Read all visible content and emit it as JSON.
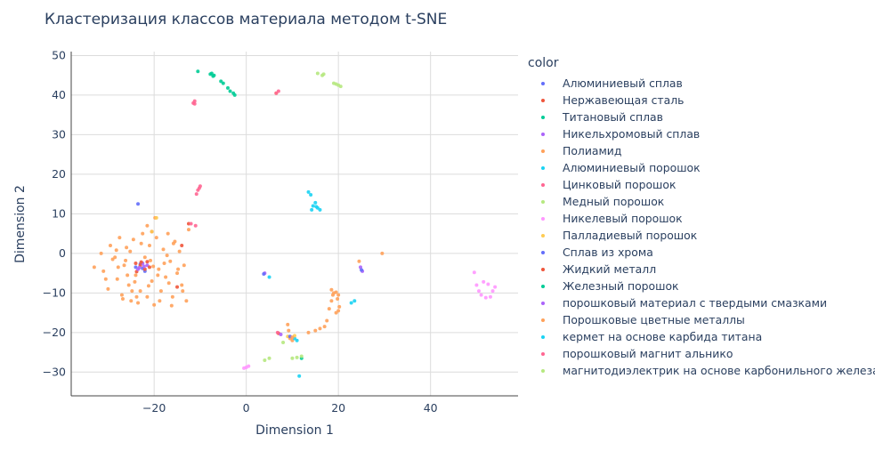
{
  "chart_data": {
    "type": "scatter",
    "title": "Кластеризация классов материала методом t-SNE",
    "xlabel": "Dimension 1",
    "ylabel": "Dimension 2",
    "xlim": [
      -38,
      59
    ],
    "ylim": [
      -36,
      51
    ],
    "x_ticks": [
      -20,
      0,
      20,
      40
    ],
    "y_ticks": [
      -30,
      -20,
      -10,
      0,
      10,
      20,
      30,
      40,
      50
    ],
    "grid": true,
    "legend_title": "color",
    "legend_position": "right",
    "series": [
      {
        "name": "Алюминиевый сплав",
        "color": "#636efa",
        "points": [
          [
            -23.5,
            12.5
          ],
          [
            -22.5,
            -3.8
          ],
          [
            -23,
            -2.7
          ],
          [
            -24,
            -3.5
          ],
          [
            -22,
            -4.5
          ]
        ]
      },
      {
        "name": "Нержавеющая сталь",
        "color": "#ef553b",
        "points": [
          [
            -23,
            -3
          ],
          [
            -22,
            -4
          ],
          [
            -24,
            -2.5
          ],
          [
            -20.5,
            5.5
          ],
          [
            -15,
            -8.5
          ],
          [
            -23.8,
            -4.6
          ],
          [
            -21.5,
            -2.1
          ],
          [
            -12.5,
            7.5
          ],
          [
            -14,
            2
          ]
        ]
      },
      {
        "name": "Титановый сплав",
        "color": "#00cc96",
        "points": [
          [
            -10.5,
            46
          ],
          [
            -7.5,
            45.5
          ],
          [
            -7,
            45
          ],
          [
            -5.5,
            43.5
          ],
          [
            -5,
            43
          ],
          [
            -4,
            41.8
          ],
          [
            -3.5,
            41
          ],
          [
            -2.8,
            40.5
          ],
          [
            -2.5,
            40
          ]
        ]
      },
      {
        "name": "Никельхромовый сплав",
        "color": "#ab63fa",
        "points": [
          [
            -22.5,
            -2.5
          ],
          [
            -23.5,
            -4
          ],
          [
            -21.5,
            -3
          ],
          [
            4,
            -5
          ],
          [
            24.8,
            -3.5
          ],
          [
            25.2,
            -4.5
          ]
        ]
      },
      {
        "name": "Полиамид",
        "color": "#ffa15a",
        "points": [
          [
            -33,
            -3.5
          ],
          [
            -31.5,
            0
          ],
          [
            -31,
            -4.5
          ],
          [
            -30,
            -9
          ],
          [
            -29.5,
            2
          ],
          [
            -28.5,
            -1
          ],
          [
            -28,
            -6.5
          ],
          [
            -27.5,
            4
          ],
          [
            -27,
            -10.5
          ],
          [
            -26.5,
            -3
          ],
          [
            -26,
            1.5
          ],
          [
            -25.5,
            -8
          ],
          [
            -25,
            -12
          ],
          [
            -24.5,
            3.5
          ],
          [
            -24,
            -5.5
          ],
          [
            -23,
            -9.5
          ],
          [
            -22.5,
            5
          ],
          [
            -22,
            -1
          ],
          [
            -21.5,
            -11
          ],
          [
            -21,
            2
          ],
          [
            -20.5,
            -7
          ],
          [
            -20,
            -13
          ],
          [
            -19.5,
            4
          ],
          [
            -19,
            -4
          ],
          [
            -18.5,
            -9.5
          ],
          [
            -18,
            1
          ],
          [
            -17.5,
            -6
          ],
          [
            -17,
            5
          ],
          [
            -16.5,
            -2
          ],
          [
            -16,
            -11
          ],
          [
            -15.5,
            3
          ],
          [
            -15,
            -5
          ],
          [
            -14.5,
            0.5
          ],
          [
            -14,
            -8
          ],
          [
            -13.5,
            -3
          ],
          [
            -13,
            -12
          ],
          [
            -12.5,
            6
          ],
          [
            -30.5,
            -6.5
          ],
          [
            -29,
            -1.5
          ],
          [
            -28.2,
            0.8
          ],
          [
            -26.8,
            -11.5
          ],
          [
            -25.8,
            -5.5
          ],
          [
            -24.8,
            -9.5
          ],
          [
            -23.5,
            -12.5
          ],
          [
            -21.5,
            7
          ],
          [
            -20.8,
            -1.8
          ],
          [
            -19.8,
            9
          ],
          [
            -18.8,
            -12
          ],
          [
            -17.8,
            -2.5
          ],
          [
            -16.8,
            -7.5
          ],
          [
            -15.8,
            2.5
          ],
          [
            -14.8,
            -4
          ],
          [
            -13.8,
            -9.5
          ],
          [
            -27.8,
            -3.5
          ],
          [
            -25.2,
            0.5
          ],
          [
            -22.8,
            2.5
          ],
          [
            -20.2,
            -3.3
          ],
          [
            -19.2,
            -5.5
          ],
          [
            -17.2,
            -0.5
          ],
          [
            -16.2,
            -13.2
          ],
          [
            -24.2,
            -7.2
          ],
          [
            -21.2,
            -8.2
          ],
          [
            -26.2,
            -1.8
          ],
          [
            -23.8,
            -11
          ],
          [
            9,
            -18
          ],
          [
            9.5,
            -21.5
          ],
          [
            10,
            -22
          ],
          [
            13.5,
            -20
          ],
          [
            15,
            -19.5
          ],
          [
            16,
            -19
          ],
          [
            17,
            -18.5
          ],
          [
            17.5,
            -17
          ],
          [
            18,
            -14
          ],
          [
            18.5,
            -12
          ],
          [
            19,
            -10
          ],
          [
            19.5,
            -9.8
          ],
          [
            20,
            -14.5
          ],
          [
            19.5,
            -15
          ],
          [
            20,
            -10.5
          ],
          [
            18.5,
            -9.2
          ],
          [
            29.5,
            0
          ],
          [
            6.5,
            40.5
          ],
          [
            24.5,
            -2
          ]
        ]
      },
      {
        "name": "Алюминиевый  порошок",
        "color": "#19d3f3",
        "points": [
          [
            5,
            -6
          ],
          [
            10.5,
            -21.5
          ],
          [
            11.5,
            -31
          ],
          [
            13.5,
            15.5
          ],
          [
            14,
            14.8
          ],
          [
            14.2,
            11
          ],
          [
            14.5,
            12
          ],
          [
            15,
            12.8
          ],
          [
            15.5,
            11.5
          ],
          [
            16,
            11
          ],
          [
            23.5,
            -12
          ]
        ]
      },
      {
        "name": "Цинковый порошок",
        "color": "#ff6692",
        "points": [
          [
            -11.5,
            38
          ],
          [
            -11.2,
            38.5
          ],
          [
            -10.8,
            15
          ],
          [
            -10.5,
            16
          ],
          [
            -10,
            17
          ],
          [
            -11,
            7
          ],
          [
            -12,
            7.5
          ],
          [
            6.5,
            40.5
          ],
          [
            7,
            41
          ]
        ]
      },
      {
        "name": "Медный порошок",
        "color": "#b6e880",
        "points": [
          [
            15.5,
            45.5
          ],
          [
            16.5,
            45
          ],
          [
            16.8,
            45.3
          ],
          [
            19,
            43
          ],
          [
            19.5,
            42.8
          ],
          [
            20.5,
            42.2
          ]
        ]
      },
      {
        "name": "Никелевый порошок",
        "color": "#ff97ff",
        "points": [
          [
            -0.5,
            -29
          ],
          [
            0,
            -28.8
          ],
          [
            0.5,
            -28.5
          ],
          [
            49.5,
            -4.8
          ],
          [
            50,
            -8
          ],
          [
            50.5,
            -9.5
          ],
          [
            51,
            -10.5
          ],
          [
            51.5,
            -7.2
          ],
          [
            52,
            -11.2
          ],
          [
            52.5,
            -7.8
          ],
          [
            53,
            -11
          ],
          [
            53.5,
            -9.5
          ],
          [
            54,
            -8.5
          ]
        ]
      },
      {
        "name": "Палладиевый порошок",
        "color": "#fecb52",
        "points": [
          [
            -19.5,
            9
          ],
          [
            -20.5,
            5.5
          ],
          [
            9,
            -21
          ],
          [
            10.5,
            -20.8
          ]
        ]
      },
      {
        "name": "Сплав из хрома",
        "color": "#636efa",
        "points": [
          [
            3.8,
            -5.2
          ],
          [
            25,
            -4.2
          ],
          [
            9.5,
            -21
          ]
        ]
      },
      {
        "name": "Жидкий металл",
        "color": "#ef553b",
        "points": [
          [
            7,
            -20.2
          ],
          [
            -21,
            -3.5
          ],
          [
            -22.8,
            -2.2
          ]
        ]
      },
      {
        "name": "Железный порошок",
        "color": "#00cc96",
        "points": [
          [
            -7.8,
            45.3
          ],
          [
            -7.2,
            44.8
          ],
          [
            12,
            -26.5
          ]
        ]
      },
      {
        "name": "порошковый материал с твердыми смазками",
        "color": "#ab63fa",
        "points": [
          [
            -23.2,
            -3.6
          ],
          [
            -22.2,
            -3.3
          ],
          [
            7.5,
            -20.5
          ]
        ]
      },
      {
        "name": "Порошковые цветные металлы",
        "color": "#ffa15a",
        "points": [
          [
            9.2,
            -19.5
          ],
          [
            10,
            -21.2
          ],
          [
            19.8,
            -11.5
          ],
          [
            18.8,
            -10.5
          ],
          [
            20.2,
            -13.5
          ]
        ]
      },
      {
        "name": "кермет на основе карбида титана",
        "color": "#19d3f3",
        "points": [
          [
            11,
            -22
          ],
          [
            15.2,
            11.8
          ],
          [
            22.8,
            -12.5
          ]
        ]
      },
      {
        "name": "порошковый магнит альнико",
        "color": "#ff6692",
        "points": [
          [
            -11.2,
            37.8
          ],
          [
            -10.2,
            16.5
          ],
          [
            6.8,
            -20
          ]
        ]
      },
      {
        "name": "магнитодиэлектрик на основе карбонильного железа",
        "color": "#b6e880",
        "points": [
          [
            4,
            -27
          ],
          [
            5,
            -26.5
          ],
          [
            8,
            -22.5
          ],
          [
            10,
            -26.5
          ],
          [
            11,
            -26.3
          ],
          [
            12,
            -26
          ],
          [
            20,
            42.5
          ]
        ]
      }
    ]
  }
}
